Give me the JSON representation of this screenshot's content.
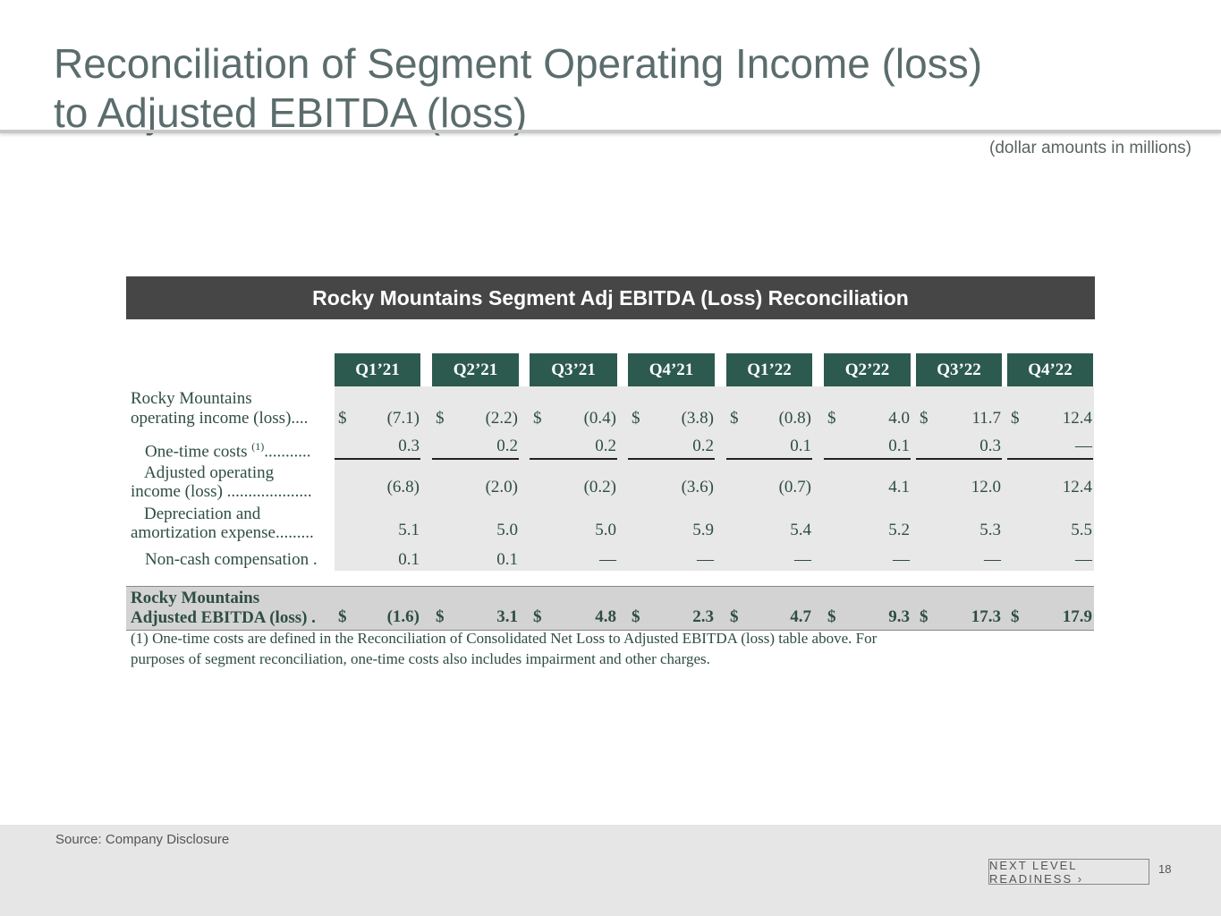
{
  "title": {
    "line1": "Reconciliation of Segment Operating Income (loss)",
    "line2": "to Adjusted EBITDA (loss)"
  },
  "units_note": "(dollar amounts in millions)",
  "banner": "Rocky Mountains Segment Adj EBITDA (Loss) Reconciliation",
  "table": {
    "quarters": [
      "Q1’21",
      "Q2’21",
      "Q3’21",
      "Q4’21",
      "Q1’22",
      "Q2’22",
      "Q3’22",
      "Q4’22"
    ],
    "rows": {
      "r0": {
        "label1": "Rocky Mountains",
        "label2": "operating income (loss)....",
        "currency": "$",
        "values": [
          "(7.1)",
          "(2.2)",
          "(0.4)",
          "(3.8)",
          "(0.8)",
          "4.0",
          "11.7",
          "12.4"
        ]
      },
      "r1": {
        "label_main": "One-time costs ",
        "label_sup": "(1)",
        "label_dots": "...........",
        "values": [
          "0.3",
          "0.2",
          "0.2",
          "0.2",
          "0.1",
          "0.1",
          "0.3",
          "—"
        ]
      },
      "r2": {
        "label1": "Adjusted operating",
        "label2": "income (loss) ....................",
        "values": [
          "(6.8)",
          "(2.0)",
          "(0.2)",
          "(3.6)",
          "(0.7)",
          "4.1",
          "12.0",
          "12.4"
        ]
      },
      "r3": {
        "label1": "Depreciation and",
        "label2": "amortization expense.........",
        "values": [
          "5.1",
          "5.0",
          "5.0",
          "5.9",
          "5.4",
          "5.2",
          "5.3",
          "5.5"
        ]
      },
      "r4": {
        "label1": "Non-cash compensation .",
        "values": [
          "0.1",
          "0.1",
          "—",
          "—",
          "—",
          "—",
          "—",
          "—"
        ]
      },
      "total": {
        "label1": "Rocky Mountains",
        "label2": "Adjusted EBITDA (loss) .",
        "currency": "$",
        "values": [
          "(1.6)",
          "3.1",
          "4.8",
          "2.3",
          "4.7",
          "9.3",
          "17.3",
          "17.9"
        ]
      }
    }
  },
  "footnote": {
    "line1": "(1) One-time costs are defined in the Reconciliation of Consolidated Net Loss to Adjusted EBITDA (loss) table above. For",
    "line2": "purposes of segment reconciliation, one-time costs also includes impairment and other charges."
  },
  "source": "Source: Company Disclosure",
  "badge": "NEXT LEVEL READINESS ›",
  "page_number": "18"
}
